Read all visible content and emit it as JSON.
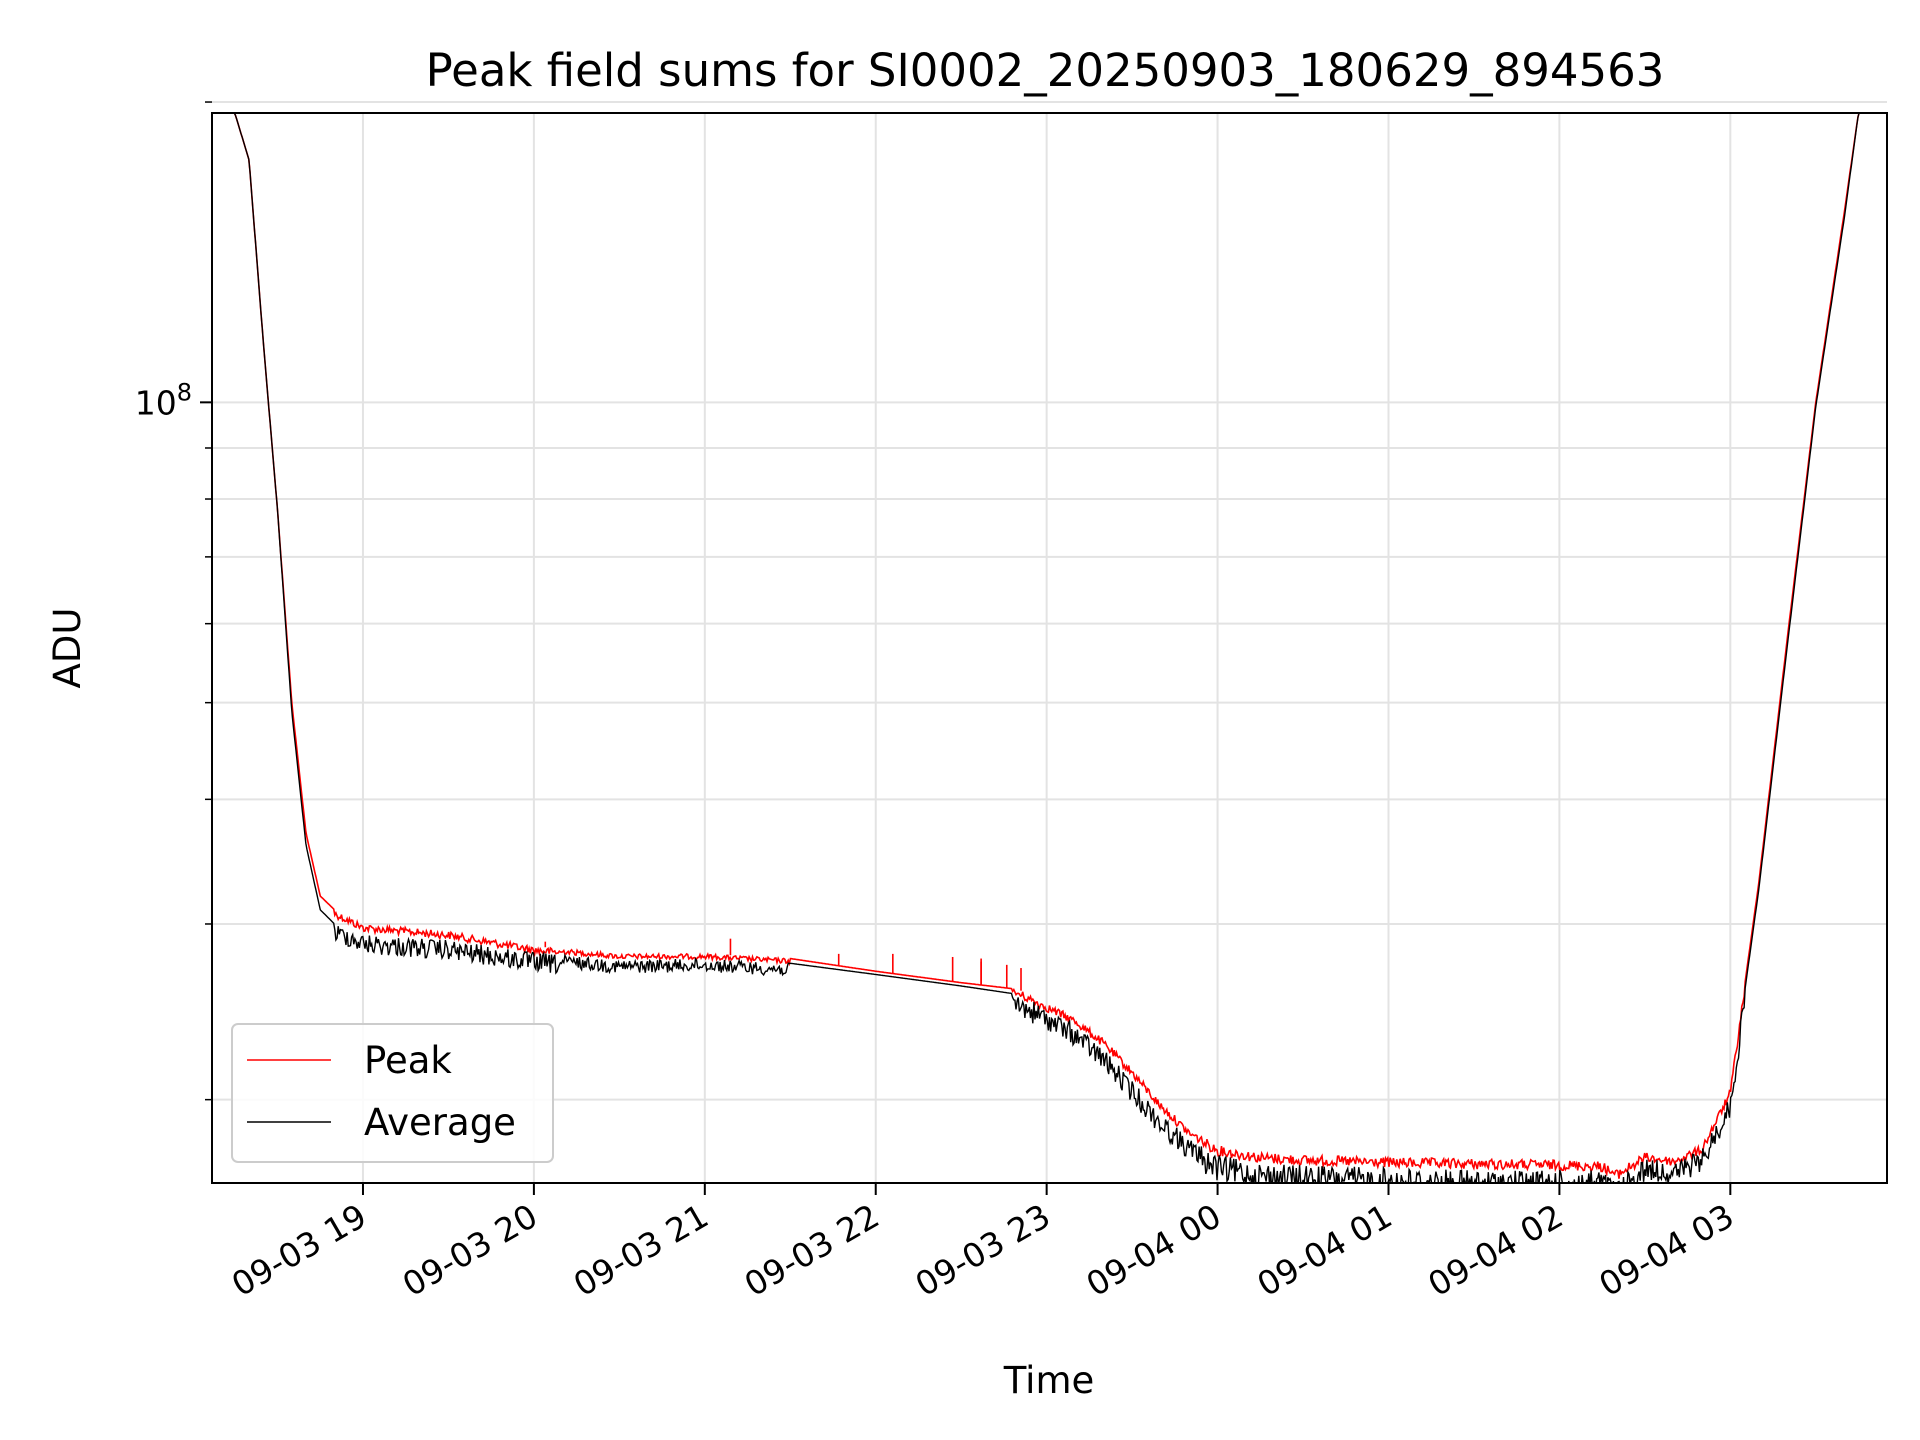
{
  "chart_data": {
    "type": "line",
    "title": "Peak field sums for SI0002_20250903_180629_894563",
    "xlabel": "Time",
    "ylabel": "ADU",
    "y_scale": "log",
    "ylim": [
      16500000,
      195000000
    ],
    "xlim": [
      "2025-09-03 18:07",
      "2025-09-04 03:55"
    ],
    "grid": true,
    "legend_position": "lower-left",
    "x_ticks": [
      {
        "t": "2025-09-03 19:00",
        "label": "09-03 19"
      },
      {
        "t": "2025-09-03 20:00",
        "label": "09-03 20"
      },
      {
        "t": "2025-09-03 21:00",
        "label": "09-03 21"
      },
      {
        "t": "2025-09-03 22:00",
        "label": "09-03 22"
      },
      {
        "t": "2025-09-03 23:00",
        "label": "09-03 23"
      },
      {
        "t": "2025-09-04 00:00",
        "label": "09-04 00"
      },
      {
        "t": "2025-09-04 01:00",
        "label": "09-04 01"
      },
      {
        "t": "2025-09-04 02:00",
        "label": "09-04 02"
      },
      {
        "t": "2025-09-04 03:00",
        "label": "09-04 03"
      }
    ],
    "y_major_ticks": [
      {
        "value": 100000000,
        "base": "10",
        "exp": "8"
      }
    ],
    "y_minor_ticks": [
      20000000,
      30000000,
      40000000,
      50000000,
      60000000,
      70000000,
      80000000,
      90000000,
      200000000
    ],
    "series": [
      {
        "name": "Peak",
        "color": "#ff0000",
        "x": [
          "2025-09-03 18:07",
          "2025-09-03 18:15",
          "2025-09-03 18:20",
          "2025-09-03 18:25",
          "2025-09-03 18:30",
          "2025-09-03 18:35",
          "2025-09-03 18:40",
          "2025-09-03 18:45",
          "2025-09-03 18:50",
          "2025-09-03 18:55",
          "2025-09-03 19:00",
          "2025-09-03 19:30",
          "2025-09-03 20:00",
          "2025-09-03 20:30",
          "2025-09-03 21:00",
          "2025-09-03 21:30",
          "2025-09-03 22:00",
          "2025-09-03 22:30",
          "2025-09-03 22:50",
          "2025-09-03 23:00",
          "2025-09-03 23:10",
          "2025-09-03 23:20",
          "2025-09-03 23:30",
          "2025-09-03 23:40",
          "2025-09-03 23:50",
          "2025-09-04 00:00",
          "2025-09-04 00:15",
          "2025-09-04 00:30",
          "2025-09-04 01:00",
          "2025-09-04 01:30",
          "2025-09-04 02:00",
          "2025-09-04 02:15",
          "2025-09-04 02:20",
          "2025-09-04 02:30",
          "2025-09-04 02:40",
          "2025-09-04 02:50",
          "2025-09-04 03:00",
          "2025-09-04 03:10",
          "2025-09-04 03:20",
          "2025-09-04 03:30",
          "2025-09-04 03:40",
          "2025-09-04 03:45",
          "2025-09-04 03:55"
        ],
        "y": [
          195000000,
          195000000,
          175000000,
          115000000,
          78000000,
          50000000,
          37000000,
          32000000,
          31000000,
          30500000,
          30000000,
          29500000,
          28500000,
          28000000,
          28000000,
          27700000,
          26900000,
          26200000,
          25800000,
          25000000,
          24200000,
          23000000,
          21500000,
          19900000,
          18700000,
          18000000,
          17700000,
          17600000,
          17500000,
          17450000,
          17400000,
          17350000,
          17000000,
          17700000,
          17500000,
          18000000,
          20500000,
          33000000,
          58000000,
          100000000,
          155000000,
          195000000,
          195000000
        ]
      },
      {
        "name": "Average",
        "color": "#000000",
        "x": [
          "2025-09-03 18:07",
          "2025-09-03 18:15",
          "2025-09-03 18:20",
          "2025-09-03 18:25",
          "2025-09-03 18:30",
          "2025-09-03 18:35",
          "2025-09-03 18:40",
          "2025-09-03 18:45",
          "2025-09-03 18:50",
          "2025-09-03 18:55",
          "2025-09-03 19:00",
          "2025-09-03 19:30",
          "2025-09-03 20:00",
          "2025-09-03 20:30",
          "2025-09-03 21:00",
          "2025-09-03 21:30",
          "2025-09-03 22:00",
          "2025-09-03 22:30",
          "2025-09-03 22:50",
          "2025-09-03 23:00",
          "2025-09-03 23:10",
          "2025-09-03 23:20",
          "2025-09-03 23:30",
          "2025-09-03 23:40",
          "2025-09-03 23:50",
          "2025-09-04 00:00",
          "2025-09-04 00:15",
          "2025-09-04 00:30",
          "2025-09-04 01:00",
          "2025-09-04 01:30",
          "2025-09-04 02:00",
          "2025-09-04 02:15",
          "2025-09-04 02:20",
          "2025-09-04 02:30",
          "2025-09-04 02:40",
          "2025-09-04 02:50",
          "2025-09-04 03:00",
          "2025-09-04 03:10",
          "2025-09-04 03:20",
          "2025-09-04 03:30",
          "2025-09-04 03:40",
          "2025-09-04 03:45",
          "2025-09-04 03:55"
        ],
        "y": [
          195000000,
          195000000,
          175000000,
          115000000,
          78000000,
          49000000,
          36000000,
          31000000,
          30000000,
          29800000,
          29300000,
          28900000,
          28100000,
          27600000,
          27700000,
          27400000,
          26700000,
          26000000,
          25500000,
          24700000,
          23800000,
          22500000,
          20900000,
          19400000,
          18300000,
          17600000,
          17300000,
          17200000,
          17100000,
          17000000,
          17000000,
          17000000,
          16600000,
          17500000,
          17300000,
          17800000,
          20200000,
          32500000,
          57000000,
          99000000,
          153000000,
          195000000,
          195000000
        ]
      }
    ],
    "peak_spikes": [
      {
        "t": "2025-09-03 20:04",
        "y": 28800000
      },
      {
        "t": "2025-09-03 21:09",
        "y": 29000000
      },
      {
        "t": "2025-09-03 21:47",
        "y": 28000000
      },
      {
        "t": "2025-09-03 22:06",
        "y": 28000000
      },
      {
        "t": "2025-09-03 22:27",
        "y": 27800000
      },
      {
        "t": "2025-09-03 22:37",
        "y": 27700000
      },
      {
        "t": "2025-09-03 22:37",
        "y": 27500000
      },
      {
        "t": "2025-09-03 22:46",
        "y": 27300000
      },
      {
        "t": "2025-09-03 22:51",
        "y": 27100000
      }
    ],
    "noise_windows": [
      {
        "from": "2025-09-03 18:50",
        "to": "2025-09-03 20:10",
        "amp": 0.045
      },
      {
        "from": "2025-09-03 20:10",
        "to": "2025-09-03 21:30",
        "amp": 0.03
      },
      {
        "from": "2025-09-03 22:48",
        "to": "2025-09-03 23:55",
        "amp": 0.05
      },
      {
        "from": "2025-09-03 23:55",
        "to": "2025-09-04 02:30",
        "amp": 0.06
      },
      {
        "from": "2025-09-04 02:30",
        "to": "2025-09-04 03:05",
        "amp": 0.05
      }
    ],
    "legend": [
      {
        "label": "Peak",
        "color": "#ff0000"
      },
      {
        "label": "Average",
        "color": "#000000"
      }
    ]
  }
}
